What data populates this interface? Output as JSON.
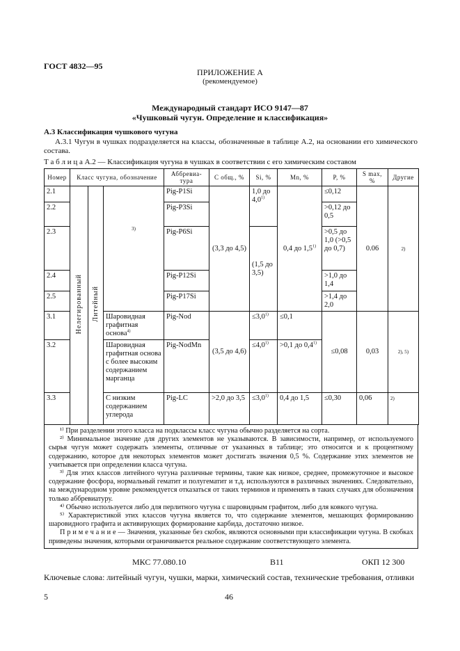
{
  "header": {
    "code": "ГОСТ 4832—95"
  },
  "appendix": {
    "title": "ПРИЛОЖЕНИЕ А",
    "subtitle": "(рекомендуемое)"
  },
  "standard": {
    "line1": "Международный стандарт ИСО 9147—87",
    "line2": "«Чушковый чугун. Определение и классификация»"
  },
  "section": {
    "heading": "А.3 Классификация чушкового чугуна",
    "text": "А.3.1 Чугун в чушках подразделяется на классы, обозначенные в таблице А.2, на основании его химического состава."
  },
  "table": {
    "caption": "Т а б л и ц а  А.2 — Классификация чугуна в чушках в соответствии с его химическим составом",
    "headers": [
      "Номер",
      "Класс чугуна, обозначение",
      "Аббревиа-тура",
      "С общ., %",
      "Si, %",
      "Mn, %",
      "P, %",
      "S max, %",
      "Другие"
    ],
    "group1": "Нелегированный",
    "group2": "Литейный",
    "rows": [
      {
        "num": "2.1",
        "abbr": "Pig-P1Si",
        "p": "≤0,12"
      },
      {
        "num": "2.2",
        "abbr": "Pig-P3Si",
        "p": ">0,12 до 0,5"
      },
      {
        "num": "2.3",
        "abbr": "Pig-P6Si",
        "p": ">0,5 до 1,0 (>0,5 до 0,7)"
      },
      {
        "num": "2.4",
        "abbr": "Pig-P12Si",
        "p": ">1,0 до 1,4"
      },
      {
        "num": "2.5",
        "abbr": "Pig-P17Si",
        "p": ">1,4 до 2,0"
      },
      {
        "num": "3.1",
        "cls": "Шаровидная графитная основа",
        "abbr": "Pig-Nod",
        "si": "≤3,0",
        "mn": "≤0,1"
      },
      {
        "num": "3.2",
        "cls": "Шаровидная графитная основа с более высоким содержанием марганца",
        "abbr": "Pig-NodMn",
        "si": "≤4,0",
        "mn": ">0,1 до 0,4"
      },
      {
        "num": "3.3",
        "cls": "С низким содержанием углерода",
        "abbr": "Pig-LC",
        "c": ">2,0 до 3,5",
        "si": "≤3,0",
        "mn": "0,4 до 1,5",
        "p": "≤0,30",
        "s": "0,06",
        "other": "2)"
      }
    ],
    "g2_class_note": "3)",
    "g2_c": "(3,3 до 4,5)",
    "g2_si_a": "1,0 до 4,0",
    "g2_si_b": "(1,5 до 3,5)",
    "g2_mn": "0,4 до 1,5",
    "g2_s": "0.06",
    "g2_other": "2)",
    "g3_c": "(3,5 до 4,6)",
    "g3_p": "≤0,08",
    "g3_s": "0,03",
    "g3_other": "2), 5)"
  },
  "notes": [
    "¹⁾ При разделении этого класса на подклассы класс чугуна обычно разделяется на сорта.",
    "²⁾ Минимальное значение для других элементов не указываются. В зависимости, например, от используемого сырья чугун может содержать элементы, отличные от указанных в таблице; это относится и к процентному содержанию, которое для некоторых элементов может достигать значения 0,5 %. Содержание этих элементов не учитывается при определении класса чугуна.",
    "³⁾ Для этих классов литейного чугуна различные термины, такие как низкое, среднее, промежуточное и высокое содержание фосфора, нормальный гематит и полугематит и т.д. используются в различных значениях. Следовательно, на международном уровне рекомендуется отказаться от таких терминов и применять в таких случаях для обозначения только аббревиатуру.",
    "⁴⁾ Обычно используется либо для перлитного чугуна с шаровидным графитом, либо для ковкого чугуна.",
    "⁵⁾ Характеристикой этих классов чугуна является то, что содержание элементов, мешающих формированию шаровидного графита и активирующих формирование карбида, достаточно низкое.",
    "П р и м е ч а н и е — Значения, указанные без скобок, являются основными при классификации чугуна. В скобках приведены значения, которыми ограничивается реальное содержание соответствующего элемента."
  ],
  "footer": {
    "mks": "МКС 77.080.10",
    "b": "B11",
    "okp": "ОКП 12 300",
    "keywords": "Ключевые слова: литейный чугун, чушки, марки, химический состав, технические требования, отливки",
    "left_num": "5",
    "page": "46"
  }
}
